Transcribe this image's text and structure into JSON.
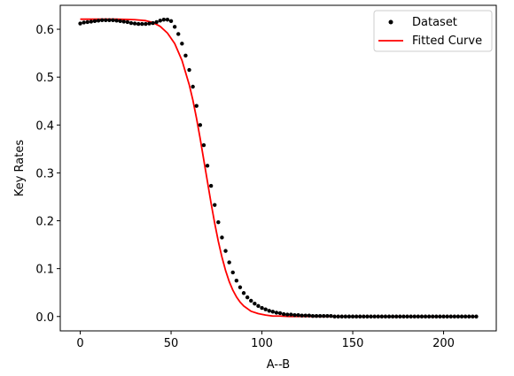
{
  "chart_data": {
    "type": "scatter",
    "title": "",
    "xlabel": "A--B",
    "ylabel": "Key Rates",
    "xlim": [
      -11,
      229
    ],
    "ylim": [
      -0.03,
      0.65
    ],
    "xticks": [
      0,
      50,
      100,
      150,
      200
    ],
    "yticks": [
      0.0,
      0.1,
      0.2,
      0.3,
      0.4,
      0.5,
      0.6
    ],
    "grid": false,
    "legend_position": "top-right",
    "colors": {
      "dataset": "#000000",
      "fit": "#ff0000"
    },
    "series": [
      {
        "name": "Dataset",
        "kind": "points",
        "x": [
          0,
          2,
          4,
          6,
          8,
          10,
          12,
          14,
          16,
          18,
          20,
          22,
          24,
          26,
          28,
          30,
          32,
          34,
          36,
          38,
          40,
          42,
          44,
          46,
          48,
          50,
          52,
          54,
          56,
          58,
          60,
          62,
          64,
          66,
          68,
          70,
          72,
          74,
          76,
          78,
          80,
          82,
          84,
          86,
          88,
          90,
          92,
          94,
          96,
          98,
          100,
          102,
          104,
          106,
          108,
          110,
          112,
          114,
          116,
          118,
          120,
          122,
          124,
          126,
          128,
          130,
          132,
          134,
          136,
          138,
          140,
          142,
          144,
          146,
          148,
          150,
          152,
          154,
          156,
          158,
          160,
          162,
          164,
          166,
          168,
          170,
          172,
          174,
          176,
          178,
          180,
          182,
          184,
          186,
          188,
          190,
          192,
          194,
          196,
          198,
          200,
          202,
          204,
          206,
          208,
          210,
          212,
          214,
          216,
          218
        ],
        "y": [
          0.612,
          0.614,
          0.615,
          0.616,
          0.617,
          0.618,
          0.619,
          0.619,
          0.619,
          0.619,
          0.618,
          0.617,
          0.616,
          0.615,
          0.613,
          0.612,
          0.611,
          0.611,
          0.611,
          0.612,
          0.613,
          0.615,
          0.618,
          0.62,
          0.62,
          0.617,
          0.605,
          0.59,
          0.57,
          0.545,
          0.515,
          0.48,
          0.44,
          0.4,
          0.358,
          0.315,
          0.273,
          0.233,
          0.197,
          0.165,
          0.137,
          0.113,
          0.092,
          0.075,
          0.061,
          0.049,
          0.04,
          0.033,
          0.027,
          0.022,
          0.018,
          0.015,
          0.012,
          0.01,
          0.008,
          0.007,
          0.005,
          0.004,
          0.004,
          0.003,
          0.003,
          0.002,
          0.002,
          0.002,
          0.001,
          0.001,
          0.001,
          0.001,
          0.001,
          0.001,
          0.0,
          0.0,
          0.0,
          0.0,
          0.0,
          0.0,
          0.0,
          0.0,
          0.0,
          0.0,
          0.0,
          0.0,
          0.0,
          0.0,
          0.0,
          0.0,
          0.0,
          0.0,
          0.0,
          0.0,
          0.0,
          0.0,
          0.0,
          0.0,
          0.0,
          0.0,
          0.0,
          0.0,
          0.0,
          0.0,
          0.0,
          0.0,
          0.0,
          0.0,
          0.0,
          0.0,
          0.0,
          0.0,
          0.0,
          0.0
        ]
      },
      {
        "name": "Fitted Curve",
        "kind": "line",
        "x": [
          0,
          10,
          20,
          30,
          36,
          40,
          44,
          48,
          52,
          56,
          60,
          62,
          64,
          66,
          68,
          70,
          72,
          74,
          76,
          78,
          80,
          82,
          84,
          86,
          88,
          90,
          94,
          98,
          102,
          106,
          110,
          115,
          120,
          130,
          140,
          160,
          180,
          200,
          218
        ],
        "y": [
          0.621,
          0.621,
          0.621,
          0.62,
          0.618,
          0.614,
          0.606,
          0.592,
          0.57,
          0.535,
          0.484,
          0.452,
          0.414,
          0.372,
          0.327,
          0.282,
          0.237,
          0.195,
          0.157,
          0.124,
          0.096,
          0.073,
          0.055,
          0.041,
          0.03,
          0.022,
          0.011,
          0.006,
          0.003,
          0.001,
          0.001,
          0.0,
          0.0,
          0.0,
          0.0,
          0.0,
          0.0,
          0.0,
          0.0
        ]
      }
    ]
  }
}
